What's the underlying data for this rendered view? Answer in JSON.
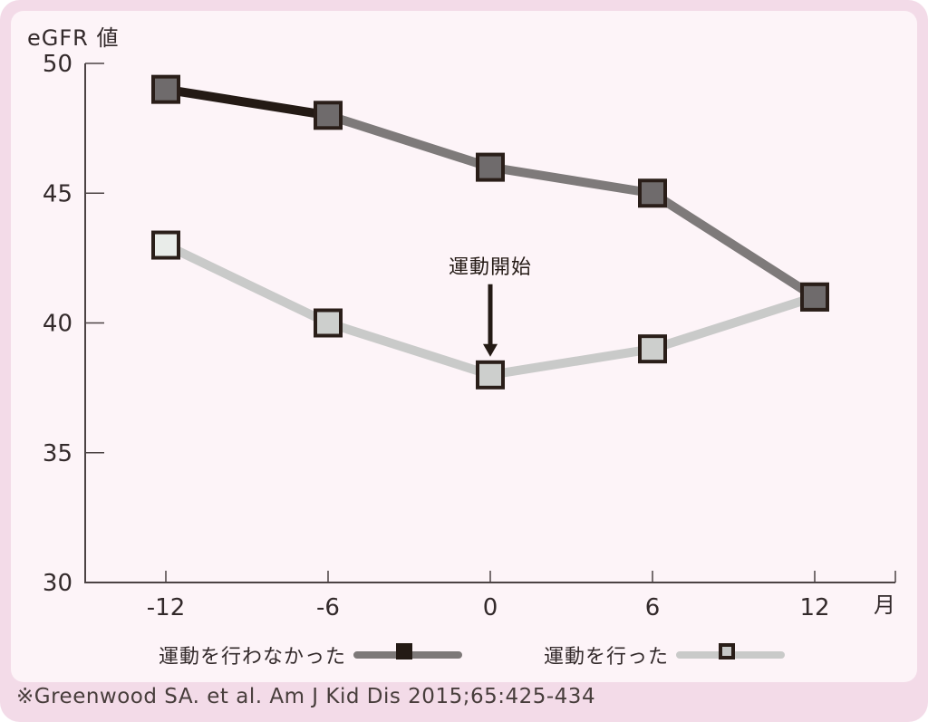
{
  "chart_data": {
    "type": "line",
    "title": "",
    "ylabel": "eGFR 値",
    "xlabel": "月",
    "x": [
      -12,
      -6,
      0,
      6,
      12
    ],
    "x_ticks": [
      -12,
      -6,
      0,
      6,
      12
    ],
    "y_ticks": [
      50,
      45,
      40,
      35,
      30
    ],
    "ylim": [
      30,
      50
    ],
    "grid": false,
    "legend_position": "bottom",
    "series": [
      {
        "name": "運動を行わなかった",
        "values": [
          49,
          48,
          46,
          45,
          41
        ],
        "line_color": "#7e7a7a",
        "segment_colors": [
          "#241a15",
          "#7e7a7a",
          "#7e7a7a",
          "#7e7a7a"
        ],
        "marker": "square",
        "marker_fill": "#6f6b6c",
        "marker_border": "#2a1e19",
        "legend_line_color": "#7d7878",
        "legend_square_fill": "#241a15",
        "legend_square_border": "#241a15"
      },
      {
        "name": "運動を行った",
        "values": [
          43,
          40,
          38,
          39,
          41
        ],
        "line_color": "#c9cac9",
        "marker": "square",
        "marker_fill": "#cdcfcd",
        "marker_fills": [
          "#e9ece9",
          "#cdcfcd",
          "#cdcfcd",
          "#cdcfcd",
          "#cdcfcd"
        ],
        "marker_border": "#2a1e19",
        "legend_line_color": "#c9cac9",
        "legend_square_fill": "#c6c7c6",
        "legend_square_border": "#2a1e19"
      }
    ],
    "annotation": {
      "text": "運動開始",
      "x": 0,
      "points_to_series": "運動を行った",
      "points_to_value": 38
    }
  },
  "citation": "※Greenwood SA. et al. Am J Kid Dis 2015;65:425-434",
  "colors": {
    "outer_background": "#f3dbe8",
    "panel_background": "#fdf4f8",
    "axis": "#4c4344",
    "text": "#332a2b",
    "annotation_arrow": "#241a15"
  }
}
